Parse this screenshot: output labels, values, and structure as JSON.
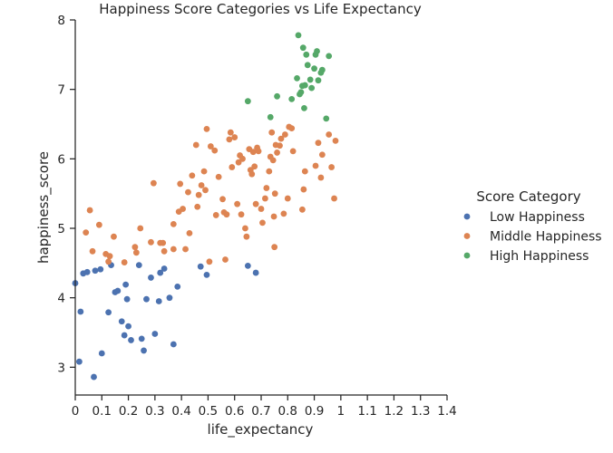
{
  "chart_data": {
    "type": "scatter",
    "title": "Happiness Score Categories vs Life Expectancy",
    "xlabel": "life_expectancy",
    "ylabel": "happiness_score",
    "xlim": [
      0,
      1.4
    ],
    "ylim": [
      2.6,
      8.0
    ],
    "xticks": [
      "0",
      "0.1",
      "0.2",
      "0.3",
      "0.4",
      "0.5",
      "0.6",
      "0.7",
      "0.8",
      "0.9",
      "1",
      "1.1",
      "1.2",
      "1.3",
      "1.4"
    ],
    "yticks": [
      "3",
      "4",
      "5",
      "6",
      "7",
      "8"
    ],
    "grid": false,
    "legend": {
      "title": "Score Category",
      "placement": "right"
    },
    "series": [
      {
        "name": "Low Happiness",
        "color": "#4c72b0",
        "points": [
          [
            0.0,
            4.21
          ],
          [
            0.015,
            3.08
          ],
          [
            0.02,
            3.8
          ],
          [
            0.03,
            4.35
          ],
          [
            0.045,
            4.37
          ],
          [
            0.07,
            2.86
          ],
          [
            0.075,
            4.39
          ],
          [
            0.095,
            4.41
          ],
          [
            0.1,
            3.2
          ],
          [
            0.125,
            3.79
          ],
          [
            0.135,
            4.47
          ],
          [
            0.15,
            4.08
          ],
          [
            0.16,
            4.1
          ],
          [
            0.175,
            3.66
          ],
          [
            0.185,
            3.46
          ],
          [
            0.19,
            4.19
          ],
          [
            0.195,
            3.98
          ],
          [
            0.2,
            3.59
          ],
          [
            0.21,
            3.39
          ],
          [
            0.24,
            4.47
          ],
          [
            0.25,
            3.41
          ],
          [
            0.258,
            3.24
          ],
          [
            0.268,
            3.98
          ],
          [
            0.285,
            4.29
          ],
          [
            0.3,
            3.48
          ],
          [
            0.315,
            3.95
          ],
          [
            0.32,
            4.36
          ],
          [
            0.335,
            4.42
          ],
          [
            0.355,
            4.0
          ],
          [
            0.37,
            3.33
          ],
          [
            0.385,
            4.16
          ],
          [
            0.472,
            4.45
          ],
          [
            0.495,
            4.33
          ],
          [
            0.65,
            4.46
          ],
          [
            0.68,
            4.36
          ]
        ]
      },
      {
        "name": "Middle Happiness",
        "color": "#dd8452",
        "points": [
          [
            0.04,
            4.94
          ],
          [
            0.055,
            5.26
          ],
          [
            0.065,
            4.67
          ],
          [
            0.09,
            5.05
          ],
          [
            0.115,
            4.63
          ],
          [
            0.125,
            4.52
          ],
          [
            0.13,
            4.6
          ],
          [
            0.145,
            4.88
          ],
          [
            0.185,
            4.51
          ],
          [
            0.225,
            4.73
          ],
          [
            0.23,
            4.65
          ],
          [
            0.245,
            5.0
          ],
          [
            0.285,
            4.8
          ],
          [
            0.295,
            5.65
          ],
          [
            0.32,
            4.79
          ],
          [
            0.33,
            4.79
          ],
          [
            0.335,
            4.67
          ],
          [
            0.37,
            4.7
          ],
          [
            0.37,
            5.06
          ],
          [
            0.39,
            5.24
          ],
          [
            0.395,
            5.64
          ],
          [
            0.405,
            5.28
          ],
          [
            0.415,
            4.7
          ],
          [
            0.425,
            5.52
          ],
          [
            0.43,
            4.93
          ],
          [
            0.44,
            5.76
          ],
          [
            0.455,
            6.2
          ],
          [
            0.46,
            5.31
          ],
          [
            0.465,
            5.48
          ],
          [
            0.475,
            5.62
          ],
          [
            0.485,
            5.82
          ],
          [
            0.49,
            5.55
          ],
          [
            0.495,
            6.43
          ],
          [
            0.505,
            4.52
          ],
          [
            0.51,
            6.18
          ],
          [
            0.525,
            6.12
          ],
          [
            0.53,
            5.19
          ],
          [
            0.54,
            5.74
          ],
          [
            0.555,
            5.42
          ],
          [
            0.56,
            5.23
          ],
          [
            0.565,
            4.55
          ],
          [
            0.57,
            5.2
          ],
          [
            0.58,
            6.28
          ],
          [
            0.585,
            6.38
          ],
          [
            0.59,
            5.88
          ],
          [
            0.6,
            6.31
          ],
          [
            0.61,
            5.35
          ],
          [
            0.615,
            5.95
          ],
          [
            0.62,
            6.05
          ],
          [
            0.625,
            5.2
          ],
          [
            0.63,
            6.0
          ],
          [
            0.64,
            5.0
          ],
          [
            0.645,
            4.88
          ],
          [
            0.655,
            6.14
          ],
          [
            0.66,
            5.84
          ],
          [
            0.665,
            5.78
          ],
          [
            0.67,
            6.1
          ],
          [
            0.675,
            5.89
          ],
          [
            0.68,
            5.35
          ],
          [
            0.685,
            6.16
          ],
          [
            0.69,
            6.11
          ],
          [
            0.7,
            5.28
          ],
          [
            0.705,
            5.08
          ],
          [
            0.715,
            5.43
          ],
          [
            0.72,
            5.58
          ],
          [
            0.73,
            5.82
          ],
          [
            0.735,
            6.03
          ],
          [
            0.74,
            6.38
          ],
          [
            0.745,
            5.98
          ],
          [
            0.748,
            5.17
          ],
          [
            0.75,
            4.73
          ],
          [
            0.752,
            5.5
          ],
          [
            0.755,
            6.2
          ],
          [
            0.76,
            6.09
          ],
          [
            0.77,
            6.19
          ],
          [
            0.775,
            6.29
          ],
          [
            0.785,
            5.21
          ],
          [
            0.79,
            6.35
          ],
          [
            0.8,
            5.43
          ],
          [
            0.805,
            6.46
          ],
          [
            0.815,
            6.44
          ],
          [
            0.82,
            6.11
          ],
          [
            0.855,
            5.27
          ],
          [
            0.86,
            5.56
          ],
          [
            0.865,
            5.82
          ],
          [
            0.905,
            5.9
          ],
          [
            0.915,
            6.23
          ],
          [
            0.925,
            5.73
          ],
          [
            0.93,
            6.06
          ],
          [
            0.955,
            6.35
          ],
          [
            0.965,
            5.88
          ],
          [
            0.975,
            5.43
          ],
          [
            0.98,
            6.26
          ]
        ]
      },
      {
        "name": "High Happiness",
        "color": "#55a868",
        "points": [
          [
            0.65,
            6.83
          ],
          [
            0.735,
            6.6
          ],
          [
            0.76,
            6.9
          ],
          [
            0.815,
            6.86
          ],
          [
            0.835,
            7.16
          ],
          [
            0.84,
            7.78
          ],
          [
            0.845,
            6.93
          ],
          [
            0.85,
            6.96
          ],
          [
            0.855,
            7.05
          ],
          [
            0.858,
            7.6
          ],
          [
            0.862,
            6.73
          ],
          [
            0.865,
            7.06
          ],
          [
            0.87,
            7.5
          ],
          [
            0.875,
            7.35
          ],
          [
            0.885,
            7.14
          ],
          [
            0.89,
            7.02
          ],
          [
            0.9,
            7.3
          ],
          [
            0.905,
            7.5
          ],
          [
            0.91,
            7.55
          ],
          [
            0.915,
            7.13
          ],
          [
            0.925,
            7.24
          ],
          [
            0.93,
            7.28
          ],
          [
            0.945,
            6.58
          ],
          [
            0.955,
            7.48
          ]
        ]
      }
    ]
  }
}
